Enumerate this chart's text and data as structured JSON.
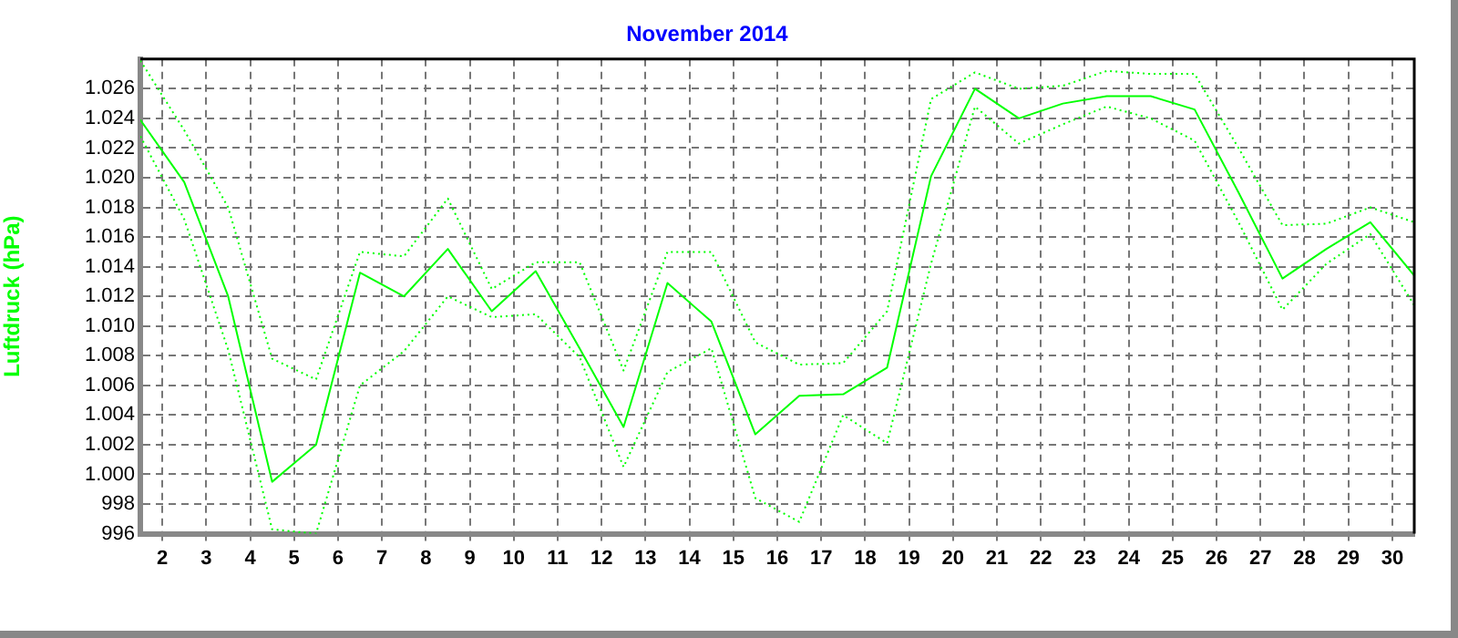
{
  "chart_data": {
    "type": "line",
    "title": "November 2014",
    "ylabel": "Luftdruck (hPa)",
    "x": [
      1.5,
      2.5,
      3.5,
      4.5,
      5.5,
      6.5,
      7.5,
      8.5,
      9.5,
      10.5,
      11.5,
      12.5,
      13.5,
      14.5,
      15.5,
      16.5,
      17.5,
      18.5,
      19.5,
      20.5,
      21.5,
      22.5,
      23.5,
      24.5,
      25.5,
      26.5,
      27.5,
      28.5,
      29.5,
      30.5
    ],
    "series": [
      {
        "color": "#00ff00",
        "line_style": "dotted",
        "values": [
          1027.9,
          1023.2,
          1018,
          1007.8,
          1006.4,
          1015,
          1014.7,
          1018.6,
          1012.5,
          1014.3,
          1014.3,
          1007,
          1015,
          1015,
          1008.9,
          1007.4,
          1007.5,
          1011,
          1025.3,
          1027.1,
          1026,
          1026.2,
          1027.2,
          1027,
          1027,
          1022,
          1016.8,
          1016.9,
          1018,
          1017
        ]
      },
      {
        "color": "#00ff00",
        "line_style": "solid",
        "values": [
          1023.9,
          1019.7,
          1012,
          999.5,
          1002,
          1013.6,
          1012,
          1015.2,
          1011,
          1013.7,
          1008.5,
          1003.2,
          1012.9,
          1010.3,
          1002.7,
          1005.3,
          1005.4,
          1007.2,
          1020.1,
          1026,
          1024,
          1025,
          1025.5,
          1025.5,
          1024.6,
          1019,
          1013.2,
          1015.2,
          1017,
          1013.4
        ]
      },
      {
        "color": "#00ff00",
        "line_style": "dotted",
        "values": [
          1022.8,
          1017.2,
          1008.4,
          996.3,
          996,
          1006,
          1008.3,
          1012,
          1010.6,
          1010.8,
          1007.9,
          1000.5,
          1006.9,
          1008.5,
          998.4,
          996.8,
          1004,
          1002.1,
          1014.2,
          1024.8,
          1022.3,
          1023.6,
          1024.8,
          1024,
          1022.5,
          1017,
          1011.1,
          1014.2,
          1016.2,
          1011.4
        ]
      }
    ],
    "xlim": [
      1.5,
      30.5
    ],
    "xticks": [
      2,
      3,
      4,
      5,
      6,
      7,
      8,
      9,
      10,
      11,
      12,
      13,
      14,
      15,
      16,
      17,
      18,
      19,
      20,
      21,
      22,
      23,
      24,
      25,
      26,
      27,
      28,
      29,
      30
    ],
    "ylim": [
      996,
      1028
    ],
    "yticks": [
      996,
      998,
      {
        "value": 1000,
        "label": "1.000"
      },
      {
        "value": 1002,
        "label": "1.002"
      },
      {
        "value": 1004,
        "label": "1.004"
      },
      {
        "value": 1006,
        "label": "1.006"
      },
      {
        "value": 1008,
        "label": "1.008"
      },
      {
        "value": 1010,
        "label": "1.010"
      },
      {
        "value": 1012,
        "label": "1.012"
      },
      {
        "value": 1014,
        "label": "1.014"
      },
      {
        "value": 1016,
        "label": "1.016"
      },
      {
        "value": 1018,
        "label": "1.018"
      },
      {
        "value": 1020,
        "label": "1.020"
      },
      {
        "value": 1022,
        "label": "1.022"
      },
      {
        "value": 1024,
        "label": "1.024"
      },
      {
        "value": 1026,
        "label": "1.026"
      }
    ],
    "grid": true,
    "legend": false,
    "marker": "none"
  }
}
